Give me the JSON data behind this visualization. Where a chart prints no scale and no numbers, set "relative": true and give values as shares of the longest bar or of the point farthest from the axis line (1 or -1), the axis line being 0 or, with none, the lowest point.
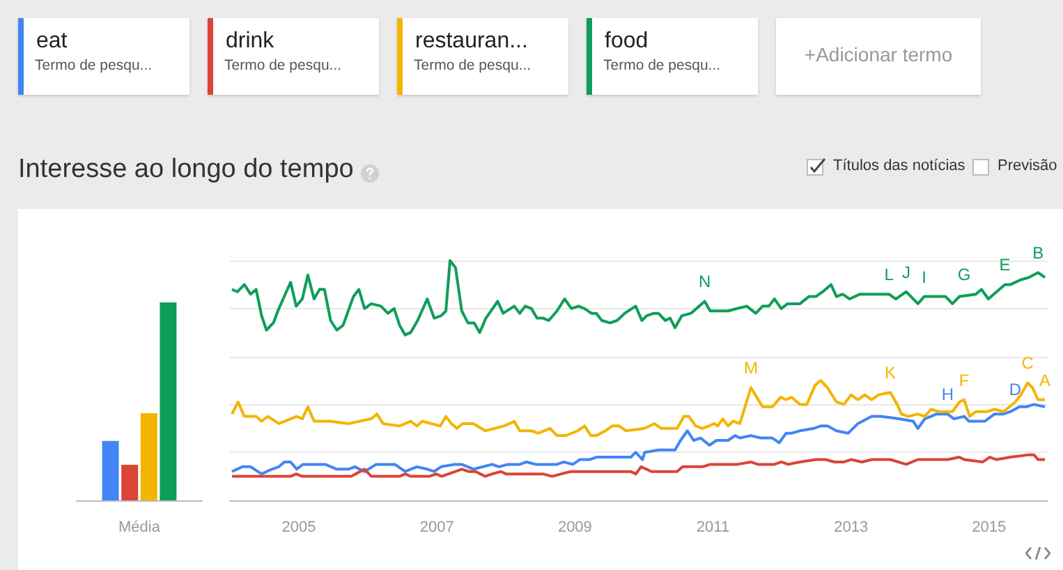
{
  "chart_data": [
    {
      "type": "bar",
      "relative": true,
      "categories": [
        "Média"
      ],
      "series": [
        {
          "color": "#4285f4",
          "values": [
            0.3
          ]
        },
        {
          "color": "#db4437",
          "values": [
            0.18
          ]
        },
        {
          "color": "#f4b400",
          "values": [
            0.44
          ]
        },
        {
          "color": "#0f9d58",
          "values": [
            1.0
          ]
        }
      ]
    },
    {
      "type": "line",
      "relative": true,
      "title": "Interesse ao longo do tempo",
      "legend": "top",
      "grid": "y",
      "marker": "none",
      "xlim": [
        2004,
        2015.85
      ],
      "xticks": [
        2005,
        2007,
        2009,
        2011,
        2013,
        2015
      ],
      "series": [
        {
          "name": "eat",
          "color": "#4285f4",
          "x": [
            2004.03,
            2004.18,
            2004.3,
            2004.46,
            2004.61,
            2004.71,
            2004.79,
            2004.88,
            2004.97,
            2005.06,
            2005.38,
            2005.55,
            2005.72,
            2005.81,
            2005.95,
            2006.12,
            2006.39,
            2006.54,
            2006.71,
            2006.86,
            2006.96,
            2007.06,
            2007.26,
            2007.36,
            2007.53,
            2007.8,
            2007.9,
            2008.03,
            2008.2,
            2008.3,
            2008.43,
            2008.74,
            2008.84,
            2008.97,
            2009.07,
            2009.21,
            2009.31,
            2009.81,
            2009.88,
            2009.98,
            2010.01,
            2010.21,
            2010.45,
            2010.53,
            2010.63,
            2010.72,
            2010.82,
            2010.95,
            2011.05,
            2011.22,
            2011.32,
            2011.39,
            2011.55,
            2011.69,
            2011.86,
            2011.96,
            2012.06,
            2012.14,
            2012.26,
            2012.46,
            2012.56,
            2012.66,
            2012.79,
            2012.96,
            2013.1,
            2013.3,
            2013.43,
            2013.7,
            2013.9,
            2013.97,
            2014.07,
            2014.24,
            2014.4,
            2014.49,
            2014.64,
            2014.71,
            2014.94,
            2015.08,
            2015.21,
            2015.31,
            2015.44,
            2015.54,
            2015.65,
            2015.81
          ],
          "values": [
            0.12,
            0.14,
            0.14,
            0.11,
            0.13,
            0.14,
            0.16,
            0.16,
            0.13,
            0.15,
            0.15,
            0.13,
            0.13,
            0.14,
            0.12,
            0.15,
            0.15,
            0.12,
            0.14,
            0.13,
            0.12,
            0.14,
            0.15,
            0.15,
            0.13,
            0.15,
            0.14,
            0.15,
            0.15,
            0.16,
            0.15,
            0.15,
            0.16,
            0.15,
            0.17,
            0.17,
            0.18,
            0.18,
            0.2,
            0.17,
            0.2,
            0.21,
            0.21,
            0.25,
            0.29,
            0.25,
            0.26,
            0.23,
            0.25,
            0.25,
            0.27,
            0.26,
            0.27,
            0.26,
            0.26,
            0.24,
            0.28,
            0.28,
            0.29,
            0.3,
            0.31,
            0.31,
            0.29,
            0.28,
            0.32,
            0.35,
            0.35,
            0.34,
            0.33,
            0.3,
            0.34,
            0.36,
            0.36,
            0.34,
            0.35,
            0.33,
            0.33,
            0.36,
            0.36,
            0.37,
            0.39,
            0.39,
            0.4,
            0.39
          ]
        },
        {
          "name": "drink",
          "color": "#db4437",
          "x": [
            2004.03,
            2004.88,
            2004.96,
            2005.05,
            2005.76,
            2005.95,
            2006.05,
            2006.46,
            2006.54,
            2006.62,
            2006.89,
            2006.99,
            2007.07,
            2007.36,
            2007.46,
            2007.56,
            2007.7,
            2007.8,
            2007.93,
            2008.0,
            2008.54,
            2008.67,
            2008.8,
            2008.94,
            2009.81,
            2009.88,
            2009.96,
            2010.11,
            2010.48,
            2010.56,
            2010.68,
            2010.85,
            2010.96,
            2011.08,
            2011.22,
            2011.35,
            2011.55,
            2011.65,
            2011.89,
            2011.99,
            2012.09,
            2012.26,
            2012.49,
            2012.63,
            2012.76,
            2012.9,
            2013.0,
            2013.16,
            2013.3,
            2013.57,
            2013.8,
            2013.97,
            2014.4,
            2014.57,
            2014.64,
            2014.91,
            2015.01,
            2015.11,
            2015.31,
            2015.58,
            2015.65,
            2015.71,
            2015.81
          ],
          "values": [
            0.1,
            0.1,
            0.11,
            0.1,
            0.1,
            0.13,
            0.1,
            0.1,
            0.11,
            0.1,
            0.1,
            0.11,
            0.1,
            0.13,
            0.12,
            0.12,
            0.1,
            0.11,
            0.12,
            0.11,
            0.11,
            0.1,
            0.11,
            0.12,
            0.12,
            0.11,
            0.14,
            0.12,
            0.12,
            0.14,
            0.14,
            0.14,
            0.15,
            0.15,
            0.15,
            0.15,
            0.16,
            0.15,
            0.15,
            0.16,
            0.15,
            0.16,
            0.17,
            0.17,
            0.16,
            0.16,
            0.17,
            0.16,
            0.17,
            0.17,
            0.15,
            0.17,
            0.17,
            0.18,
            0.17,
            0.16,
            0.18,
            0.17,
            0.18,
            0.19,
            0.19,
            0.17,
            0.17
          ]
        },
        {
          "name": "restauran...",
          "color": "#f4b400",
          "x": [
            2004.03,
            2004.12,
            2004.21,
            2004.38,
            2004.46,
            2004.55,
            2004.71,
            2004.97,
            2005.05,
            2005.13,
            2005.22,
            2005.45,
            2005.72,
            2006.05,
            2006.13,
            2006.22,
            2006.46,
            2006.62,
            2006.71,
            2006.79,
            2007.05,
            2007.13,
            2007.21,
            2007.29,
            2007.37,
            2007.53,
            2007.7,
            2007.97,
            2008.05,
            2008.12,
            2008.2,
            2008.37,
            2008.47,
            2008.64,
            2008.74,
            2008.87,
            2009.04,
            2009.14,
            2009.23,
            2009.31,
            2009.44,
            2009.54,
            2009.64,
            2009.74,
            2010.01,
            2010.15,
            2010.25,
            2010.48,
            2010.58,
            2010.65,
            2010.75,
            2010.85,
            2011.02,
            2011.07,
            2011.14,
            2011.22,
            2011.29,
            2011.39,
            2011.55,
            2011.72,
            2011.86,
            2011.98,
            2012.06,
            2012.14,
            2012.26,
            2012.36,
            2012.48,
            2012.56,
            2012.66,
            2012.79,
            2012.9,
            2013.0,
            2013.1,
            2013.2,
            2013.3,
            2013.4,
            2013.57,
            2013.67,
            2013.73,
            2013.83,
            2013.97,
            2014.07,
            2014.16,
            2014.27,
            2014.47,
            2014.57,
            2014.64,
            2014.72,
            2014.81,
            2014.97,
            2015.08,
            2015.21,
            2015.38,
            2015.46,
            2015.56,
            2015.63,
            2015.71,
            2015.81
          ],
          "values": [
            0.36,
            0.41,
            0.35,
            0.35,
            0.33,
            0.35,
            0.32,
            0.35,
            0.34,
            0.39,
            0.33,
            0.33,
            0.32,
            0.34,
            0.36,
            0.32,
            0.31,
            0.33,
            0.31,
            0.33,
            0.31,
            0.35,
            0.32,
            0.3,
            0.32,
            0.32,
            0.29,
            0.31,
            0.32,
            0.33,
            0.29,
            0.29,
            0.28,
            0.3,
            0.27,
            0.27,
            0.29,
            0.31,
            0.27,
            0.27,
            0.29,
            0.31,
            0.31,
            0.29,
            0.3,
            0.32,
            0.3,
            0.3,
            0.35,
            0.35,
            0.31,
            0.3,
            0.32,
            0.31,
            0.34,
            0.31,
            0.33,
            0.32,
            0.47,
            0.39,
            0.39,
            0.43,
            0.42,
            0.43,
            0.4,
            0.4,
            0.48,
            0.5,
            0.47,
            0.41,
            0.4,
            0.44,
            0.42,
            0.44,
            0.42,
            0.44,
            0.45,
            0.4,
            0.36,
            0.35,
            0.36,
            0.35,
            0.38,
            0.37,
            0.37,
            0.41,
            0.42,
            0.35,
            0.37,
            0.37,
            0.38,
            0.37,
            0.41,
            0.44,
            0.49,
            0.47,
            0.42,
            0.42
          ]
        },
        {
          "name": "food",
          "color": "#0f9d58",
          "x": [
            2004.03,
            2004.11,
            2004.21,
            2004.3,
            2004.38,
            2004.46,
            2004.53,
            2004.63,
            2004.71,
            2004.88,
            2004.96,
            2005.05,
            2005.13,
            2005.22,
            2005.3,
            2005.37,
            2005.46,
            2005.55,
            2005.64,
            2005.79,
            2005.87,
            2005.95,
            2006.05,
            2006.19,
            2006.29,
            2006.38,
            2006.46,
            2006.54,
            2006.62,
            2006.72,
            2006.86,
            2006.96,
            2007.06,
            2007.13,
            2007.19,
            2007.27,
            2007.36,
            2007.45,
            2007.54,
            2007.62,
            2007.71,
            2007.88,
            2007.96,
            2008.12,
            2008.2,
            2008.28,
            2008.37,
            2008.45,
            2008.54,
            2008.62,
            2008.74,
            2008.85,
            2008.95,
            2009.05,
            2009.14,
            2009.24,
            2009.31,
            2009.39,
            2009.51,
            2009.61,
            2009.72,
            2009.88,
            2009.97,
            2010.04,
            2010.14,
            2010.21,
            2010.31,
            2010.38,
            2010.45,
            2010.55,
            2010.68,
            2010.88,
            2010.96,
            2011.12,
            2011.22,
            2011.35,
            2011.49,
            2011.62,
            2011.72,
            2011.81,
            2011.89,
            2011.99,
            2012.08,
            2012.26,
            2012.39,
            2012.49,
            2012.59,
            2012.71,
            2012.79,
            2012.88,
            2012.98,
            2013.13,
            2013.3,
            2013.4,
            2013.55,
            2013.65,
            2013.8,
            2013.97,
            2014.06,
            2014.37,
            2014.47,
            2014.57,
            2014.81,
            2014.89,
            2014.99,
            2015.11,
            2015.23,
            2015.31,
            2015.46,
            2015.58,
            2015.71,
            2015.81
          ],
          "values": [
            0.88,
            0.87,
            0.9,
            0.86,
            0.88,
            0.77,
            0.71,
            0.74,
            0.8,
            0.91,
            0.81,
            0.84,
            0.94,
            0.84,
            0.88,
            0.88,
            0.75,
            0.71,
            0.73,
            0.85,
            0.88,
            0.8,
            0.82,
            0.81,
            0.78,
            0.8,
            0.73,
            0.69,
            0.7,
            0.75,
            0.84,
            0.76,
            0.77,
            0.79,
            1.0,
            0.97,
            0.79,
            0.74,
            0.74,
            0.7,
            0.76,
            0.83,
            0.78,
            0.81,
            0.78,
            0.81,
            0.8,
            0.76,
            0.76,
            0.75,
            0.79,
            0.84,
            0.8,
            0.81,
            0.8,
            0.78,
            0.78,
            0.75,
            0.74,
            0.75,
            0.78,
            0.81,
            0.75,
            0.77,
            0.78,
            0.78,
            0.75,
            0.76,
            0.72,
            0.77,
            0.78,
            0.83,
            0.79,
            0.79,
            0.79,
            0.8,
            0.81,
            0.78,
            0.81,
            0.81,
            0.84,
            0.8,
            0.82,
            0.82,
            0.85,
            0.85,
            0.87,
            0.9,
            0.85,
            0.86,
            0.84,
            0.86,
            0.86,
            0.86,
            0.86,
            0.84,
            0.87,
            0.82,
            0.85,
            0.85,
            0.82,
            0.85,
            0.86,
            0.88,
            0.84,
            0.87,
            0.9,
            0.9,
            0.92,
            0.93,
            0.95,
            0.93
          ]
        }
      ],
      "annotations": [
        "Termo de pesqu...",
        "Termo de pesqu...",
        "Termo de pesqu...",
        "Termo de pesqu...",
        "+Adicionar termo",
        "Títulos das notícias",
        "Previsão",
        {
          "text": "N",
          "x": 2010.88,
          "y": 0.83
        },
        {
          "text": "M",
          "x": 2011.55,
          "y": 0.47
        },
        {
          "text": "L",
          "x": 2013.55,
          "y": 0.86
        },
        {
          "text": "K",
          "x": 2013.57,
          "y": 0.45
        },
        {
          "text": "J",
          "x": 2013.8,
          "y": 0.87
        },
        {
          "text": "I",
          "x": 2014.06,
          "y": 0.85
        },
        {
          "text": "H",
          "x": 2014.4,
          "y": 0.36
        },
        {
          "text": "G",
          "x": 2014.64,
          "y": 0.86
        },
        {
          "text": "F",
          "x": 2014.64,
          "y": 0.42
        },
        {
          "text": "E",
          "x": 2015.23,
          "y": 0.9
        },
        {
          "text": "D",
          "x": 2015.38,
          "y": 0.38
        },
        {
          "text": "C",
          "x": 2015.56,
          "y": 0.49
        },
        {
          "text": "B",
          "x": 2015.71,
          "y": 0.95
        },
        {
          "text": "A",
          "x": 2015.81,
          "y": 0.42
        }
      ]
    }
  ]
}
